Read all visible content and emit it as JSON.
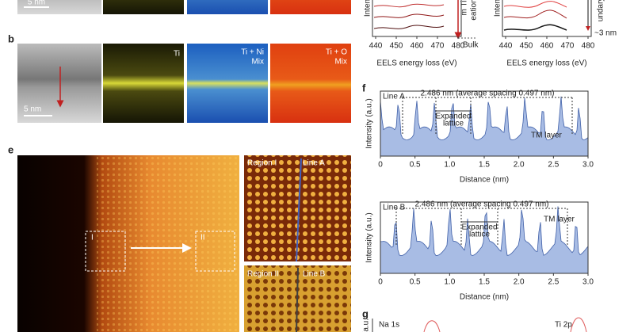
{
  "top_strip": {
    "scale_bar": "5 nm"
  },
  "eels": [
    {
      "y_label": "Inten",
      "annotation_1": "m Ti",
      "annotation_2": "eation",
      "bulk": "Bulk",
      "x_ticks": [
        "440",
        "450",
        "460",
        "470",
        "480"
      ],
      "x_label": "EELS energy loss (eV)"
    },
    {
      "y_label": "Inten",
      "annotation_1": "undary",
      "depth": "~3 nm",
      "x_ticks": [
        "440",
        "450",
        "460",
        "470",
        "480"
      ],
      "x_label": "EELS energy loss (eV)"
    }
  ],
  "panel_b": {
    "label": "b",
    "map_ti": "Ti",
    "map_ti_ni_1": "Ti + Ni",
    "map_ti_ni_2": "Mix",
    "map_ti_o_1": "Ti + O",
    "map_ti_o_2": "Mix",
    "scale_bar": "5 nm"
  },
  "panel_e": {
    "label": "e",
    "box_1": "I",
    "box_2": "II",
    "region_1": "Region I",
    "line_a": "Line A",
    "region_2": "Region II",
    "line_b": "Line B"
  },
  "panel_f": {
    "label": "f",
    "plots": [
      {
        "line": "Line A",
        "spacing": "2.486 nm (average spacing 0.497 nm)",
        "expanded_1": "Expanded",
        "expanded_2": "lattice",
        "tm_layer": "TM layer",
        "y_label": "Intensity (a.u.)",
        "x_ticks": [
          "0",
          "0.5",
          "1.0",
          "1.5",
          "2.0",
          "2.5",
          "3.0"
        ],
        "x_label": "Distance (nm)"
      },
      {
        "line": "Line B",
        "spacing": "2.486 nm (average spacing 0.497 nm)",
        "expanded_1": "Expanded",
        "expanded_2": "lattice",
        "tm_layer": "TM layer",
        "y_label": "Intensity (a.u.)",
        "x_ticks": [
          "0",
          "0.5",
          "1.0",
          "1.5",
          "2.0",
          "2.5",
          "3.0"
        ],
        "x_label": "Distance (nm)"
      }
    ]
  },
  "panel_g": {
    "label": "g",
    "y_label": "(a.u.",
    "na": "Na 1s",
    "ti": "Ti 2p"
  }
}
